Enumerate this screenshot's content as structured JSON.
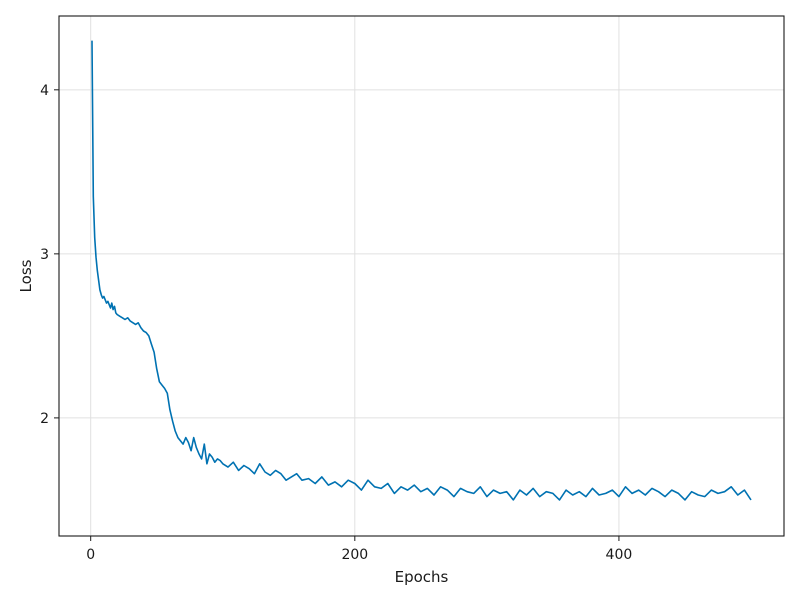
{
  "chart_data": {
    "type": "line",
    "title": "",
    "xlabel": "Epochs",
    "ylabel": "Loss",
    "xlim": [
      -24,
      525
    ],
    "ylim": [
      1.28,
      4.45
    ],
    "xticks": [
      0,
      200,
      400
    ],
    "yticks": [
      2,
      3,
      4
    ],
    "grid": true,
    "line_color": "#0072b2",
    "series": [
      {
        "x": [
          1,
          2,
          3,
          4,
          5,
          6,
          7,
          8,
          9,
          10,
          11,
          12,
          13,
          14,
          15,
          16,
          17,
          18,
          19,
          20,
          22,
          24,
          26,
          28,
          30,
          32,
          34,
          36,
          38,
          40,
          42,
          44,
          46,
          48,
          50,
          52,
          54,
          56,
          58,
          60,
          62,
          64,
          66,
          68,
          70,
          72,
          74,
          76,
          78,
          80,
          82,
          84,
          86,
          88,
          90,
          92,
          94,
          96,
          98,
          100,
          104,
          108,
          112,
          116,
          120,
          124,
          128,
          132,
          136,
          140,
          144,
          148,
          152,
          156,
          160,
          165,
          170,
          175,
          180,
          185,
          190,
          195,
          200,
          205,
          210,
          215,
          220,
          225,
          230,
          235,
          240,
          245,
          250,
          255,
          260,
          265,
          270,
          275,
          280,
          285,
          290,
          295,
          300,
          305,
          310,
          315,
          320,
          325,
          330,
          335,
          340,
          345,
          350,
          355,
          360,
          365,
          370,
          375,
          380,
          385,
          390,
          395,
          400,
          405,
          410,
          415,
          420,
          425,
          430,
          435,
          440,
          445,
          450,
          455,
          460,
          465,
          470,
          475,
          480,
          485,
          490,
          495,
          500
        ],
        "values": [
          4.3,
          3.35,
          3.1,
          2.98,
          2.9,
          2.84,
          2.78,
          2.75,
          2.73,
          2.74,
          2.72,
          2.7,
          2.71,
          2.69,
          2.67,
          2.7,
          2.66,
          2.68,
          2.64,
          2.63,
          2.62,
          2.61,
          2.6,
          2.61,
          2.59,
          2.58,
          2.57,
          2.58,
          2.55,
          2.53,
          2.52,
          2.5,
          2.45,
          2.4,
          2.3,
          2.22,
          2.2,
          2.18,
          2.15,
          2.05,
          1.98,
          1.92,
          1.88,
          1.86,
          1.84,
          1.88,
          1.85,
          1.8,
          1.88,
          1.82,
          1.78,
          1.75,
          1.84,
          1.72,
          1.78,
          1.76,
          1.73,
          1.75,
          1.74,
          1.72,
          1.7,
          1.73,
          1.68,
          1.71,
          1.69,
          1.66,
          1.72,
          1.67,
          1.65,
          1.68,
          1.66,
          1.62,
          1.64,
          1.66,
          1.62,
          1.63,
          1.6,
          1.64,
          1.59,
          1.61,
          1.58,
          1.62,
          1.6,
          1.56,
          1.62,
          1.58,
          1.57,
          1.6,
          1.54,
          1.58,
          1.56,
          1.59,
          1.55,
          1.57,
          1.53,
          1.58,
          1.56,
          1.52,
          1.57,
          1.55,
          1.54,
          1.58,
          1.52,
          1.56,
          1.54,
          1.55,
          1.5,
          1.56,
          1.53,
          1.57,
          1.52,
          1.55,
          1.54,
          1.5,
          1.56,
          1.53,
          1.55,
          1.52,
          1.57,
          1.53,
          1.54,
          1.56,
          1.52,
          1.58,
          1.54,
          1.56,
          1.53,
          1.57,
          1.55,
          1.52,
          1.56,
          1.54,
          1.5,
          1.55,
          1.53,
          1.52,
          1.56,
          1.54,
          1.55,
          1.58,
          1.53,
          1.56,
          1.5
        ]
      }
    ]
  }
}
